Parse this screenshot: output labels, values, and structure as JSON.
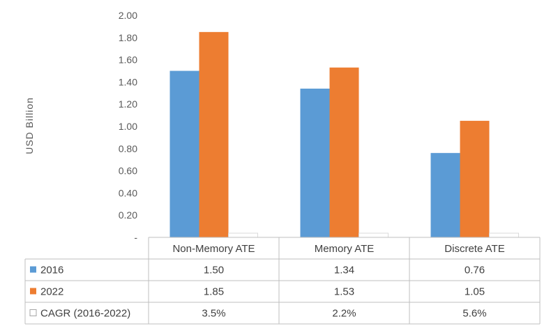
{
  "chart_data": {
    "type": "bar",
    "categories": [
      "Non-Memory ATE",
      "Memory ATE",
      "Discrete ATE"
    ],
    "series": [
      {
        "name": "2016",
        "values": [
          1.5,
          1.34,
          0.76
        ],
        "color": "#5b9bd5"
      },
      {
        "name": "2022",
        "values": [
          1.85,
          1.53,
          1.05
        ],
        "color": "#ed7d31"
      },
      {
        "name": "CAGR (2016-2022)",
        "values": [
          0.035,
          0.022,
          0.056
        ],
        "color": "#ffffff",
        "display": [
          "3.5%",
          "2.2%",
          "5.6%"
        ]
      }
    ],
    "ylabel": "USD Billion",
    "ylim": [
      0,
      2.0
    ],
    "yticks": [
      "-",
      "0.20",
      "0.40",
      "0.60",
      "0.80",
      "1.00",
      "1.20",
      "1.40",
      "1.60",
      "1.80",
      "2.00"
    ],
    "table": [
      [
        "1.50",
        "1.34",
        "0.76"
      ],
      [
        "1.85",
        "1.53",
        "1.05"
      ],
      [
        "3.5%",
        "2.2%",
        "5.6%"
      ]
    ],
    "grid": false,
    "legend": "data-table"
  }
}
